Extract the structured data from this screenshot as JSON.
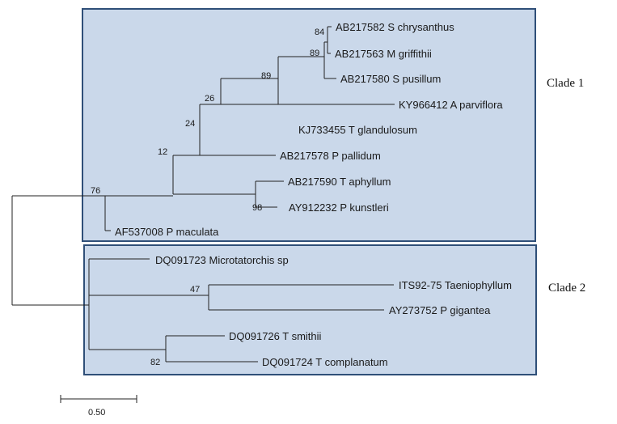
{
  "clades": [
    {
      "label": "Clade 1"
    },
    {
      "label": "Clade 2"
    }
  ],
  "taxa": [
    "AB217582 S chrysanthus",
    "AB217563 M griffithii",
    "AB217580 S pusillum",
    "KY966412 A parviflora",
    "KJ733455 T glandulosum",
    "AB217578 P pallidum",
    "AB217590 T aphyllum",
    "AY912232 P kunstleri",
    "AF537008 P maculata",
    "DQ091723 Microtatorchis sp",
    "ITS92-75 Taeniophyllum",
    "AY273752 P gigantea",
    "DQ091726 T smithii",
    "DQ091724 T complanatum"
  ],
  "support_values": [
    "84",
    "89",
    "89",
    "26",
    "24",
    "12",
    "76",
    "98",
    "47",
    "82"
  ],
  "scale_bar": {
    "label": "0.50"
  },
  "colors": {
    "clade_box_fill": "#cad8ea",
    "clade_box_border": "#2f4f78",
    "branch": "#222222"
  }
}
